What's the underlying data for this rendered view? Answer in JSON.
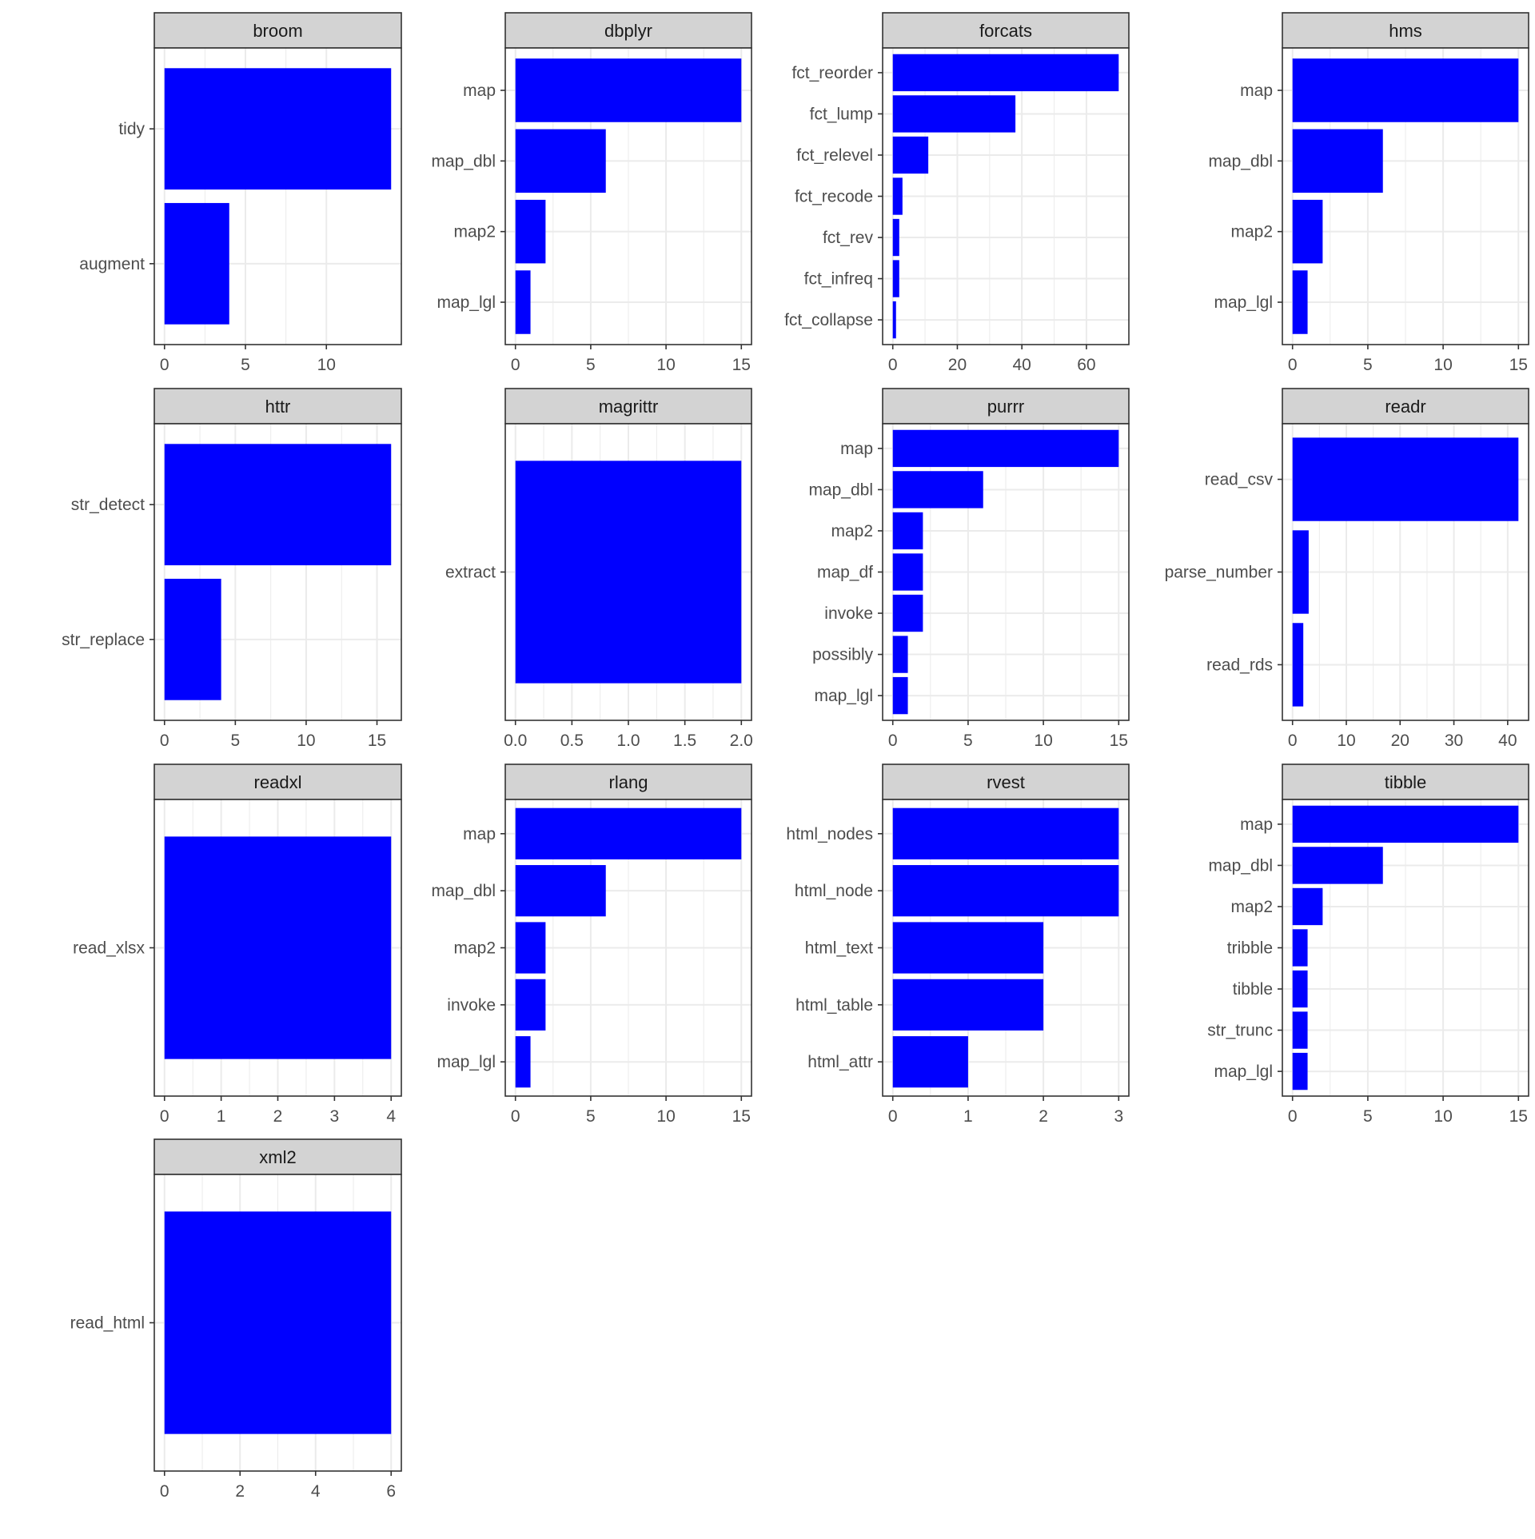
{
  "chart_data": [
    {
      "type": "bar",
      "orientation": "horizontal",
      "title": "broom",
      "categories": [
        "tidy",
        "augment"
      ],
      "values": [
        14,
        4
      ],
      "xlim": [
        0,
        14
      ],
      "xticks": [
        0,
        5,
        10
      ],
      "xtick_labels": [
        "0",
        "5",
        "10"
      ],
      "grid": true
    },
    {
      "type": "bar",
      "orientation": "horizontal",
      "title": "dbplyr",
      "categories": [
        "map",
        "map_dbl",
        "map2",
        "map_lgl"
      ],
      "values": [
        15,
        6,
        2,
        1
      ],
      "xlim": [
        0,
        15
      ],
      "xticks": [
        0,
        5,
        10,
        15
      ],
      "xtick_labels": [
        "0",
        "5",
        "10",
        "15"
      ],
      "grid": true
    },
    {
      "type": "bar",
      "orientation": "horizontal",
      "title": "forcats",
      "categories": [
        "fct_reorder",
        "fct_lump",
        "fct_relevel",
        "fct_recode",
        "fct_rev",
        "fct_infreq",
        "fct_collapse"
      ],
      "values": [
        70,
        38,
        11,
        3,
        2,
        2,
        1
      ],
      "xlim": [
        0,
        70
      ],
      "xticks": [
        0,
        20,
        40,
        60
      ],
      "xtick_labels": [
        "0",
        "20",
        "40",
        "60"
      ],
      "grid": true
    },
    {
      "type": "bar",
      "orientation": "horizontal",
      "title": "hms",
      "categories": [
        "map",
        "map_dbl",
        "map2",
        "map_lgl"
      ],
      "values": [
        15,
        6,
        2,
        1
      ],
      "xlim": [
        0,
        15
      ],
      "xticks": [
        0,
        5,
        10,
        15
      ],
      "xtick_labels": [
        "0",
        "5",
        "10",
        "15"
      ],
      "grid": true
    },
    {
      "type": "bar",
      "orientation": "horizontal",
      "title": "httr",
      "categories": [
        "str_detect",
        "str_replace"
      ],
      "values": [
        16,
        4
      ],
      "xlim": [
        0,
        16
      ],
      "xticks": [
        0,
        5,
        10,
        15
      ],
      "xtick_labels": [
        "0",
        "5",
        "10",
        "15"
      ],
      "grid": true
    },
    {
      "type": "bar",
      "orientation": "horizontal",
      "title": "magrittr",
      "categories": [
        "extract"
      ],
      "values": [
        2
      ],
      "xlim": [
        0,
        2
      ],
      "xticks": [
        0,
        0.5,
        1,
        1.5,
        2
      ],
      "xtick_labels": [
        "0.0",
        "0.5",
        "1.0",
        "1.5",
        "2.0"
      ],
      "grid": true
    },
    {
      "type": "bar",
      "orientation": "horizontal",
      "title": "purrr",
      "categories": [
        "map",
        "map_dbl",
        "map2",
        "map_df",
        "invoke",
        "possibly",
        "map_lgl"
      ],
      "values": [
        15,
        6,
        2,
        2,
        2,
        1,
        1
      ],
      "xlim": [
        0,
        15
      ],
      "xticks": [
        0,
        5,
        10,
        15
      ],
      "xtick_labels": [
        "0",
        "5",
        "10",
        "15"
      ],
      "grid": true
    },
    {
      "type": "bar",
      "orientation": "horizontal",
      "title": "readr",
      "categories": [
        "read_csv",
        "parse_number",
        "read_rds"
      ],
      "values": [
        42,
        3,
        2
      ],
      "xlim": [
        0,
        42
      ],
      "xticks": [
        0,
        10,
        20,
        30,
        40
      ],
      "xtick_labels": [
        "0",
        "10",
        "20",
        "30",
        "40"
      ],
      "grid": true
    },
    {
      "type": "bar",
      "orientation": "horizontal",
      "title": "readxl",
      "categories": [
        "read_xlsx"
      ],
      "values": [
        4
      ],
      "xlim": [
        0,
        4
      ],
      "xticks": [
        0,
        1,
        2,
        3,
        4
      ],
      "xtick_labels": [
        "0",
        "1",
        "2",
        "3",
        "4"
      ],
      "grid": true
    },
    {
      "type": "bar",
      "orientation": "horizontal",
      "title": "rlang",
      "categories": [
        "map",
        "map_dbl",
        "map2",
        "invoke",
        "map_lgl"
      ],
      "values": [
        15,
        6,
        2,
        2,
        1
      ],
      "xlim": [
        0,
        15
      ],
      "xticks": [
        0,
        5,
        10,
        15
      ],
      "xtick_labels": [
        "0",
        "5",
        "10",
        "15"
      ],
      "grid": true
    },
    {
      "type": "bar",
      "orientation": "horizontal",
      "title": "rvest",
      "categories": [
        "html_nodes",
        "html_node",
        "html_text",
        "html_table",
        "html_attr"
      ],
      "values": [
        3,
        3,
        2,
        2,
        1
      ],
      "xlim": [
        0,
        3
      ],
      "xticks": [
        0,
        1,
        2,
        3
      ],
      "xtick_labels": [
        "0",
        "1",
        "2",
        "3"
      ],
      "grid": true
    },
    {
      "type": "bar",
      "orientation": "horizontal",
      "title": "tibble",
      "categories": [
        "map",
        "map_dbl",
        "map2",
        "tribble",
        "tibble",
        "str_trunc",
        "map_lgl"
      ],
      "values": [
        15,
        6,
        2,
        1,
        1,
        1,
        1
      ],
      "xlim": [
        0,
        15
      ],
      "xticks": [
        0,
        5,
        10,
        15
      ],
      "xtick_labels": [
        "0",
        "5",
        "10",
        "15"
      ],
      "grid": true
    },
    {
      "type": "bar",
      "orientation": "horizontal",
      "title": "xml2",
      "categories": [
        "read_html"
      ],
      "values": [
        6
      ],
      "xlim": [
        0,
        6
      ],
      "xticks": [
        0,
        2,
        4,
        6
      ],
      "xtick_labels": [
        "0",
        "2",
        "4",
        "6"
      ],
      "grid": true
    }
  ],
  "style": {
    "bar_color": "#0000FF",
    "strip_fill": "#D3D3D3",
    "border_color": "#333333",
    "grid_color": "#EBEBEB",
    "text_color": "#4D4D4D",
    "strip_text_color": "#1A1A1A"
  }
}
